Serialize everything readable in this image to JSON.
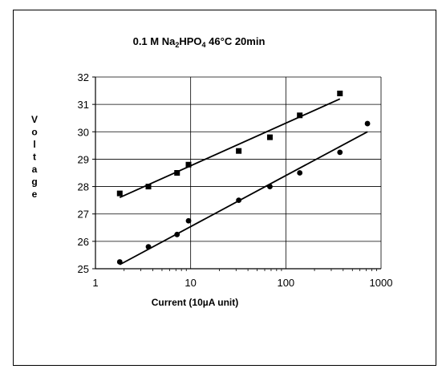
{
  "chart_data": {
    "type": "scatter",
    "title": "0.1 M Na2HPO4 46°C 20min",
    "title_parts": [
      "0.1 M Na",
      "2",
      "HPO",
      "4",
      " 46°C 20min"
    ],
    "xlabel": "Current (10µA unit)",
    "ylabel": "Voltage",
    "x_scale": "log",
    "xlim": [
      1,
      1000
    ],
    "ylim": [
      25,
      32
    ],
    "x_ticks": [
      1,
      10,
      100,
      1000
    ],
    "x_tick_labels": [
      "1",
      "10",
      "100",
      "1000"
    ],
    "y_ticks": [
      25,
      26,
      27,
      28,
      29,
      30,
      31,
      32
    ],
    "y_tick_labels": [
      "25",
      "26",
      "27",
      "28",
      "29",
      "30",
      "31",
      "32"
    ],
    "grid": true,
    "legend": "none",
    "series": [
      {
        "marker": "square",
        "color": "#000000",
        "x": [
          1.8,
          3.6,
          7.2,
          9.5,
          32,
          68,
          140,
          370
        ],
        "y": [
          27.75,
          28.0,
          28.5,
          28.8,
          29.3,
          29.8,
          30.6,
          31.4
        ],
        "trendline": {
          "type": "log-linear",
          "from": [
            1.8,
            27.6
          ],
          "to": [
            370,
            31.2
          ]
        }
      },
      {
        "marker": "circle",
        "color": "#000000",
        "x": [
          1.8,
          3.6,
          7.2,
          9.5,
          32,
          68,
          140,
          370,
          720
        ],
        "y": [
          25.25,
          25.8,
          26.25,
          26.75,
          27.5,
          28.0,
          28.5,
          29.25,
          30.3
        ],
        "trendline": {
          "type": "log-linear",
          "from": [
            1.8,
            25.15
          ],
          "to": [
            720,
            30.0
          ]
        }
      }
    ]
  }
}
